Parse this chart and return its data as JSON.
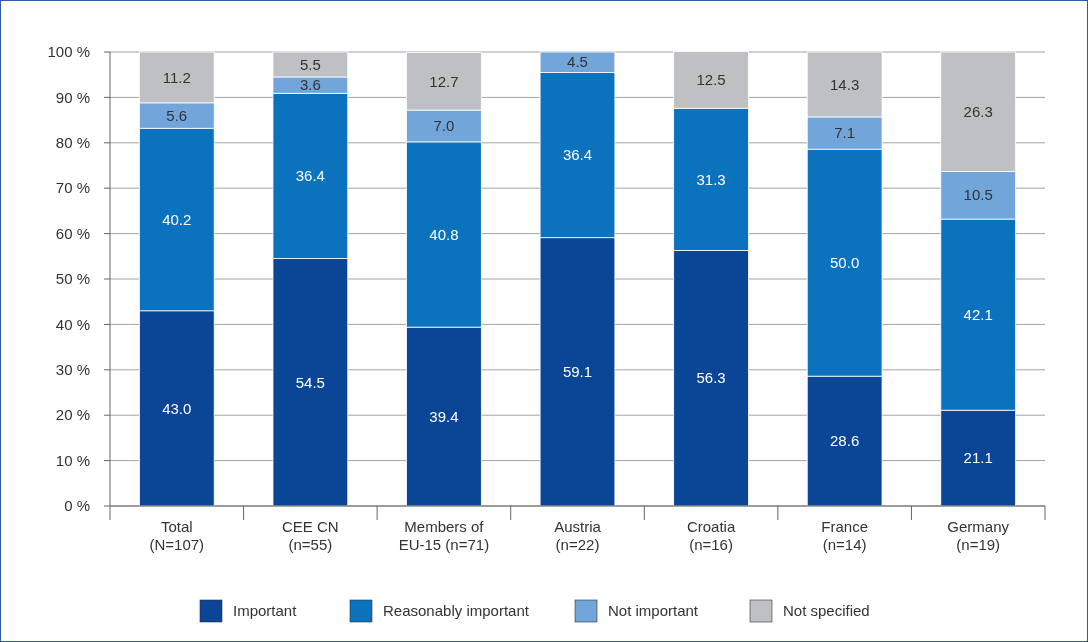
{
  "chart_data": {
    "type": "bar",
    "stacked": true,
    "grid": "y",
    "legend": "bottom",
    "categories": [
      "Total\n(N=107)",
      "CEE CN\n(n=55)",
      "Members of\nEU-15 (n=71)",
      "Austria\n(n=22)",
      "Croatia\n(n=16)",
      "France\n(n=14)",
      "Germany\n(n=19)"
    ],
    "ylim": [
      0,
      100
    ],
    "yticks": [
      {
        "value": 0,
        "label": "0 %"
      },
      {
        "value": 10,
        "label": "10 %"
      },
      {
        "value": 20,
        "label": "20 %"
      },
      {
        "value": 30,
        "label": "30 %"
      },
      {
        "value": 40,
        "label": "40 %"
      },
      {
        "value": 50,
        "label": "50 %"
      },
      {
        "value": 60,
        "label": "60 %"
      },
      {
        "value": 70,
        "label": "70 %"
      },
      {
        "value": 80,
        "label": "80 %"
      },
      {
        "value": 90,
        "label": "90 %"
      },
      {
        "value": 100,
        "label": "100 %"
      }
    ],
    "series": [
      {
        "name": "Important",
        "color": "#0b4595",
        "values": [
          43.0,
          54.5,
          39.4,
          59.1,
          56.3,
          28.6,
          21.1
        ],
        "value_labels": [
          "43.0",
          "54.5",
          "39.4",
          "59.1",
          "56.3",
          "28.6",
          "21.1"
        ]
      },
      {
        "name": "Reasonably important",
        "color": "#0b73bd",
        "values": [
          40.2,
          36.4,
          40.8,
          36.4,
          31.3,
          50.0,
          42.1
        ],
        "value_labels": [
          "40.2",
          "36.4",
          "40.8",
          "36.4",
          "31.3",
          "50.0",
          "42.1"
        ]
      },
      {
        "name": "Not important",
        "color": "#72a6db",
        "values": [
          5.6,
          3.6,
          7.0,
          4.5,
          null,
          7.1,
          10.5
        ],
        "value_labels": [
          "5.6",
          "3.6",
          "7.0",
          "4.5",
          null,
          "7.1",
          "10.5"
        ]
      },
      {
        "name": "Not specified",
        "color": "#bfc0c4",
        "values": [
          11.2,
          5.5,
          12.7,
          null,
          12.5,
          14.3,
          26.3
        ],
        "value_labels": [
          "11.2",
          "5.5",
          "12.7",
          null,
          "12.5",
          "14.3",
          "26.3"
        ]
      }
    ]
  }
}
